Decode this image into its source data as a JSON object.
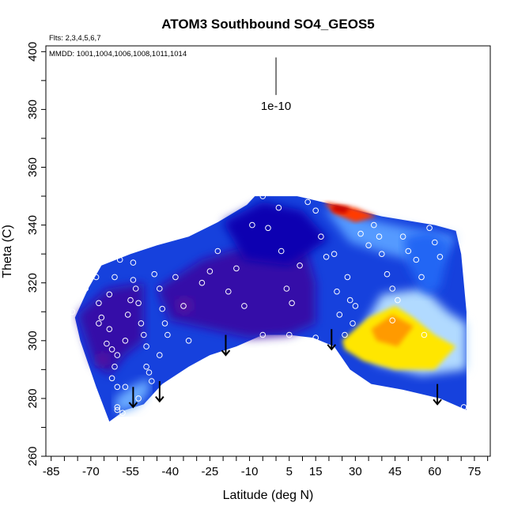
{
  "chart_data": {
    "type": "heatmap",
    "title": "ATOM3 Southbound SO4_GEOS5",
    "subtitle_flights": "Flts: 2,3,4,5,6,7",
    "subtitle_dates": "MMDD: 1001,1004,1006,1008,1011,1014",
    "xlabel": "Latitude (deg N)",
    "ylabel": "Theta (C)",
    "xlim": [
      -87,
      81
    ],
    "ylim": [
      260,
      402
    ],
    "x_ticks": [
      "-85",
      "-70",
      "-55",
      "-40",
      "-25",
      "-10",
      "5",
      "15",
      "30",
      "45",
      "60",
      "75"
    ],
    "x_tick_values": [
      -85,
      -70,
      -55,
      -40,
      -25,
      -10,
      5,
      15,
      30,
      45,
      60,
      75
    ],
    "y_ticks": [
      "260",
      "280",
      "300",
      "320",
      "340",
      "360",
      "380",
      "400"
    ],
    "y_tick_values": [
      260,
      280,
      300,
      320,
      340,
      360,
      380,
      400
    ],
    "scale_label": "1e-10",
    "scale_bar": {
      "x": 0,
      "y_top": 398,
      "y_bottom": 385
    },
    "colors": {
      "low": "#0000b4",
      "mid": "#3c8cff",
      "pale": "#dcf0ff",
      "high_yellow": "#ffdc00",
      "high_orange": "#ff8c00",
      "peak_red": "#e61400",
      "markers": "#ffffff",
      "arrows": "#000000"
    },
    "regions": [
      {
        "name": "domain",
        "value": 0.3,
        "polygon": [
          [
            -76,
            308
          ],
          [
            -71,
            318
          ],
          [
            -66,
            326
          ],
          [
            -55,
            330
          ],
          [
            -45,
            333
          ],
          [
            -33,
            336
          ],
          [
            -22,
            341
          ],
          [
            -11,
            347
          ],
          [
            -8,
            350
          ],
          [
            8,
            350
          ],
          [
            22,
            347
          ],
          [
            40,
            343
          ],
          [
            60,
            340
          ],
          [
            68,
            338
          ],
          [
            70,
            330
          ],
          [
            72,
            310
          ],
          [
            72,
            276
          ],
          [
            62,
            280
          ],
          [
            48,
            283
          ],
          [
            36,
            285
          ],
          [
            28,
            290
          ],
          [
            22,
            298
          ],
          [
            14,
            301
          ],
          [
            5,
            302
          ],
          [
            -5,
            302
          ],
          [
            -15,
            298
          ],
          [
            -25,
            295
          ],
          [
            -33,
            291
          ],
          [
            -43,
            285
          ],
          [
            -50,
            278
          ],
          [
            -57,
            276
          ],
          [
            -63,
            272
          ],
          [
            -68,
            284
          ],
          [
            -74,
            300
          ]
        ]
      },
      {
        "name": "south-lower-dark",
        "value": 0.05,
        "polygon": [
          [
            -75,
            309
          ],
          [
            -64,
            318
          ],
          [
            -50,
            320
          ],
          [
            -50,
            300
          ],
          [
            -57,
            295
          ],
          [
            -63,
            288
          ],
          [
            -69,
            292
          ]
        ]
      },
      {
        "name": "central-dark",
        "value": 0.05,
        "polygon": [
          [
            -45,
            318
          ],
          [
            -28,
            328
          ],
          [
            -10,
            333
          ],
          [
            10,
            336
          ],
          [
            15,
            320
          ],
          [
            15,
            306
          ],
          [
            5,
            302
          ],
          [
            -10,
            301
          ],
          [
            -25,
            304
          ],
          [
            -40,
            307
          ]
        ]
      },
      {
        "name": "upper-mid-dark",
        "value": 0.1,
        "polygon": [
          [
            -20,
            341
          ],
          [
            -5,
            348
          ],
          [
            10,
            345
          ],
          [
            20,
            335
          ],
          [
            5,
            326
          ],
          [
            -12,
            328
          ]
        ]
      },
      {
        "name": "north-upper-light",
        "value": 0.55,
        "polygon": [
          [
            18,
            346
          ],
          [
            35,
            342
          ],
          [
            55,
            338
          ],
          [
            68,
            336
          ],
          [
            60,
            326
          ],
          [
            42,
            330
          ],
          [
            28,
            334
          ]
        ]
      },
      {
        "name": "north-pale-band",
        "value": 0.75,
        "polygon": [
          [
            40,
            316
          ],
          [
            56,
            318
          ],
          [
            65,
            310
          ],
          [
            72,
            306
          ],
          [
            72,
            290
          ],
          [
            55,
            288
          ],
          [
            38,
            292
          ],
          [
            30,
            300
          ],
          [
            35,
            308
          ]
        ]
      },
      {
        "name": "north-blue-tongue",
        "value": 0.4,
        "polygon": [
          [
            48,
            336
          ],
          [
            58,
            338
          ],
          [
            66,
            334
          ],
          [
            62,
            318
          ],
          [
            56,
            316
          ],
          [
            50,
            326
          ]
        ]
      },
      {
        "name": "pale-margin-south",
        "value": 0.6,
        "polygon": [
          [
            -61,
            280
          ],
          [
            -55,
            284
          ],
          [
            -48,
            287
          ],
          [
            -48,
            282
          ],
          [
            -53,
            277
          ],
          [
            -60,
            275
          ]
        ]
      },
      {
        "name": "purple-spot-1",
        "value": 0.0,
        "polygon": [
          [
            -38,
            314
          ],
          [
            -33,
            315
          ],
          [
            -31,
            311
          ],
          [
            -36,
            309
          ]
        ]
      },
      {
        "name": "purple-spot-2",
        "value": 0.0,
        "polygon": [
          [
            -68,
            295
          ],
          [
            -64,
            296
          ],
          [
            -63,
            292
          ],
          [
            -67,
            291
          ]
        ]
      }
    ],
    "hotspots": [
      {
        "name": "north-hotspot",
        "polygon": [
          [
            25,
            300
          ],
          [
            35,
            308
          ],
          [
            45,
            312
          ],
          [
            52,
            308
          ],
          [
            60,
            302
          ],
          [
            68,
            298
          ],
          [
            60,
            290
          ],
          [
            45,
            290
          ],
          [
            33,
            293
          ],
          [
            26,
            297
          ]
        ],
        "fill": "#ffe600"
      },
      {
        "name": "north-hotspot-core",
        "polygon": [
          [
            36,
            304
          ],
          [
            44,
            309
          ],
          [
            52,
            305
          ],
          [
            46,
            298
          ],
          [
            38,
            300
          ]
        ],
        "fill": "#ff9a00"
      },
      {
        "name": "top-hotspot",
        "polygon": [
          [
            18,
            348
          ],
          [
            30,
            346
          ],
          [
            38,
            343
          ],
          [
            30,
            341
          ],
          [
            22,
            344
          ]
        ],
        "fill": "#ff3a00"
      },
      {
        "name": "top-hotspot-core",
        "polygon": [
          [
            22,
            347
          ],
          [
            28,
            346
          ],
          [
            26,
            344
          ],
          [
            21,
            345
          ]
        ],
        "fill": "#c80000"
      }
    ],
    "points": [
      [
        -77,
        310
      ],
      [
        -72,
        318
      ],
      [
        -69,
        326
      ],
      [
        -68,
        322
      ],
      [
        -67,
        313
      ],
      [
        -66,
        308
      ],
      [
        -67,
        306
      ],
      [
        -64,
        299
      ],
      [
        -63,
        304
      ],
      [
        -62,
        297
      ],
      [
        -61,
        291
      ],
      [
        -62,
        287
      ],
      [
        -60,
        284
      ],
      [
        -60,
        295
      ],
      [
        -57,
        300
      ],
      [
        -56,
        309
      ],
      [
        -55,
        314
      ],
      [
        -54,
        321
      ],
      [
        -54,
        327
      ],
      [
        -53,
        318
      ],
      [
        -52,
        313
      ],
      [
        -51,
        306
      ],
      [
        -50,
        302
      ],
      [
        -49,
        298
      ],
      [
        -49,
        291
      ],
      [
        -48,
        289
      ],
      [
        -47,
        286
      ],
      [
        -59,
        328
      ],
      [
        -61,
        322
      ],
      [
        -63,
        316
      ],
      [
        -46,
        323
      ],
      [
        -44,
        318
      ],
      [
        -43,
        311
      ],
      [
        -42,
        306
      ],
      [
        -41,
        302
      ],
      [
        -44,
        295
      ],
      [
        -38,
        322
      ],
      [
        -35,
        312
      ],
      [
        -33,
        300
      ],
      [
        -28,
        320
      ],
      [
        -25,
        324
      ],
      [
        -22,
        331
      ],
      [
        -18,
        317
      ],
      [
        -15,
        325
      ],
      [
        -12,
        312
      ],
      [
        -9,
        340
      ],
      [
        -5,
        350
      ],
      [
        -3,
        339
      ],
      [
        1,
        346
      ],
      [
        2,
        331
      ],
      [
        4,
        318
      ],
      [
        6,
        313
      ],
      [
        9,
        326
      ],
      [
        12,
        348
      ],
      [
        15,
        345
      ],
      [
        17,
        336
      ],
      [
        19,
        329
      ],
      [
        22,
        330
      ],
      [
        23,
        317
      ],
      [
        24,
        309
      ],
      [
        27,
        322
      ],
      [
        28,
        314
      ],
      [
        30,
        312
      ],
      [
        29,
        306
      ],
      [
        32,
        337
      ],
      [
        35,
        333
      ],
      [
        37,
        340
      ],
      [
        39,
        336
      ],
      [
        40,
        330
      ],
      [
        42,
        323
      ],
      [
        44,
        318
      ],
      [
        46,
        314
      ],
      [
        48,
        336
      ],
      [
        50,
        331
      ],
      [
        53,
        328
      ],
      [
        55,
        322
      ],
      [
        58,
        339
      ],
      [
        60,
        334
      ],
      [
        62,
        329
      ],
      [
        -52,
        280
      ],
      [
        -57,
        284
      ],
      [
        -58,
        275
      ],
      [
        -60,
        277
      ],
      [
        15,
        301
      ],
      [
        26,
        302
      ],
      [
        44,
        307
      ],
      [
        56,
        302
      ],
      [
        71,
        277
      ],
      [
        -5,
        302
      ],
      [
        5,
        302
      ],
      [
        -60,
        276
      ]
    ],
    "arrows": [
      {
        "x": -54,
        "y_from": 284,
        "y_to": 277
      },
      {
        "x": -44,
        "y_from": 286,
        "y_to": 279
      },
      {
        "x": -19,
        "y_from": 302,
        "y_to": 295
      },
      {
        "x": 21,
        "y_from": 304,
        "y_to": 297
      },
      {
        "x": 61,
        "y_from": 285,
        "y_to": 278
      }
    ]
  }
}
